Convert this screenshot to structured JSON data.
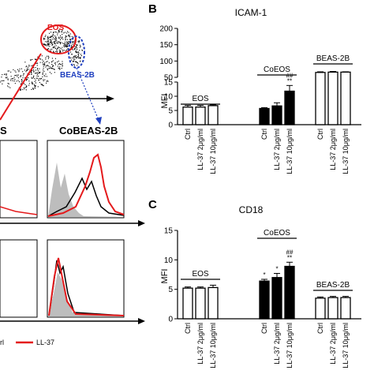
{
  "left": {
    "gate_labels": [
      "EOS",
      "BEAS-2B"
    ],
    "headers": [
      "S",
      "CoBEAS-2B"
    ],
    "legend": [
      {
        "label": "rl",
        "color": "#000000"
      },
      {
        "label": "LL-37",
        "color": "#e41a1c"
      }
    ],
    "colors": {
      "eos_gate": "#e41a1c",
      "beas_gate": "#1f3fbf",
      "isotype": "#bdbdbd",
      "ll37": "#e41a1c",
      "control": "#000000"
    }
  },
  "chart_data": [
    {
      "type": "bar",
      "panel_letter": "B",
      "title": "ICAM-1",
      "ylabel": "MFI",
      "y_axis_break": true,
      "y_ticks_lower": [
        0,
        5,
        10,
        15
      ],
      "y_ticks_upper": [
        50,
        100,
        150,
        200
      ],
      "ylim_lower": [
        0,
        15
      ],
      "ylim_upper": [
        50,
        200
      ],
      "categories": [
        "Ctrl",
        "LL-37 2μg/ml",
        "LL-37 10μg/ml",
        "Ctrl",
        "LL-37 2μg/ml",
        "LL-37 10μg/ml",
        "Ctrl",
        "LL-37 2μg/ml",
        "LL-37 10μg/ml"
      ],
      "groups": [
        {
          "name": "EOS",
          "fill": "#ffffff",
          "values": [
            6.2,
            6.2,
            6.7
          ],
          "errors": [
            0.6,
            0.6,
            0.3
          ],
          "annotations": [
            "",
            "",
            ""
          ]
        },
        {
          "name": "CoEOS",
          "fill": "#000000",
          "values": [
            5.7,
            6.6,
            11.8
          ],
          "errors": [
            0.3,
            1.1,
            2.0
          ],
          "annotations": [
            "",
            "",
            "##\n**"
          ]
        },
        {
          "name": "BEAS-2B",
          "fill": "#ffffff",
          "values": [
            65,
            66,
            66
          ],
          "errors": [
            2,
            2,
            1
          ],
          "annotations": [
            "",
            "",
            ""
          ]
        }
      ]
    },
    {
      "type": "bar",
      "panel_letter": "C",
      "title": "CD18",
      "ylabel": "MFI",
      "y_ticks": [
        0,
        5,
        10,
        15
      ],
      "ylim": [
        0,
        15
      ],
      "categories": [
        "Ctrl",
        "LL-37 2μg/ml",
        "LL-37 10μg/ml",
        "Ctrl",
        "LL-37 2μg/ml",
        "LL-37 10μg/ml",
        "Ctrl",
        "LL-37 2μg/ml",
        "LL-37 10μg/ml"
      ],
      "groups": [
        {
          "name": "EOS",
          "fill": "#ffffff",
          "values": [
            5.2,
            5.2,
            5.3
          ],
          "errors": [
            0.2,
            0.2,
            0.4
          ],
          "annotations": [
            "",
            "",
            ""
          ]
        },
        {
          "name": "CoEOS",
          "fill": "#000000",
          "values": [
            6.4,
            7.0,
            8.9
          ],
          "errors": [
            0.3,
            0.7,
            0.7
          ],
          "annotations": [
            "*",
            "*",
            "##\n**"
          ]
        },
        {
          "name": "BEAS-2B",
          "fill": "#ffffff",
          "values": [
            3.5,
            3.6,
            3.6
          ],
          "errors": [
            0.2,
            0.2,
            0.2
          ],
          "annotations": [
            "",
            "",
            ""
          ]
        }
      ]
    }
  ]
}
